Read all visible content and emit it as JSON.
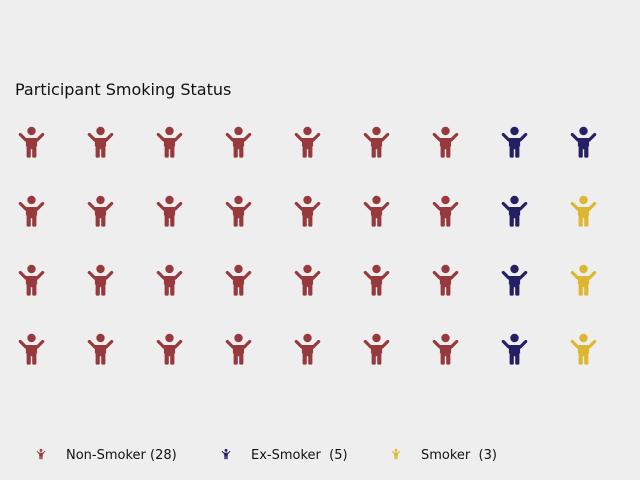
{
  "chart_data": {
    "type": "pictogram",
    "title": "Participant Smoking Status",
    "unit": "participant",
    "categories": [
      {
        "name": "Non-Smoker",
        "count": 28,
        "color": "#963a3e",
        "legend_label": "Non-Smoker (28)"
      },
      {
        "name": "Ex-Smoker",
        "count": 5,
        "color": "#251f63",
        "legend_label": "Ex-Smoker  (5)"
      },
      {
        "name": "Smoker",
        "count": 3,
        "color": "#ddb731",
        "legend_label": "Smoker  (3)"
      }
    ],
    "total": 36,
    "grid": {
      "rows": 4,
      "columns": 9
    },
    "icon": "person-arms-raised-icon",
    "legend_position": "bottom"
  }
}
